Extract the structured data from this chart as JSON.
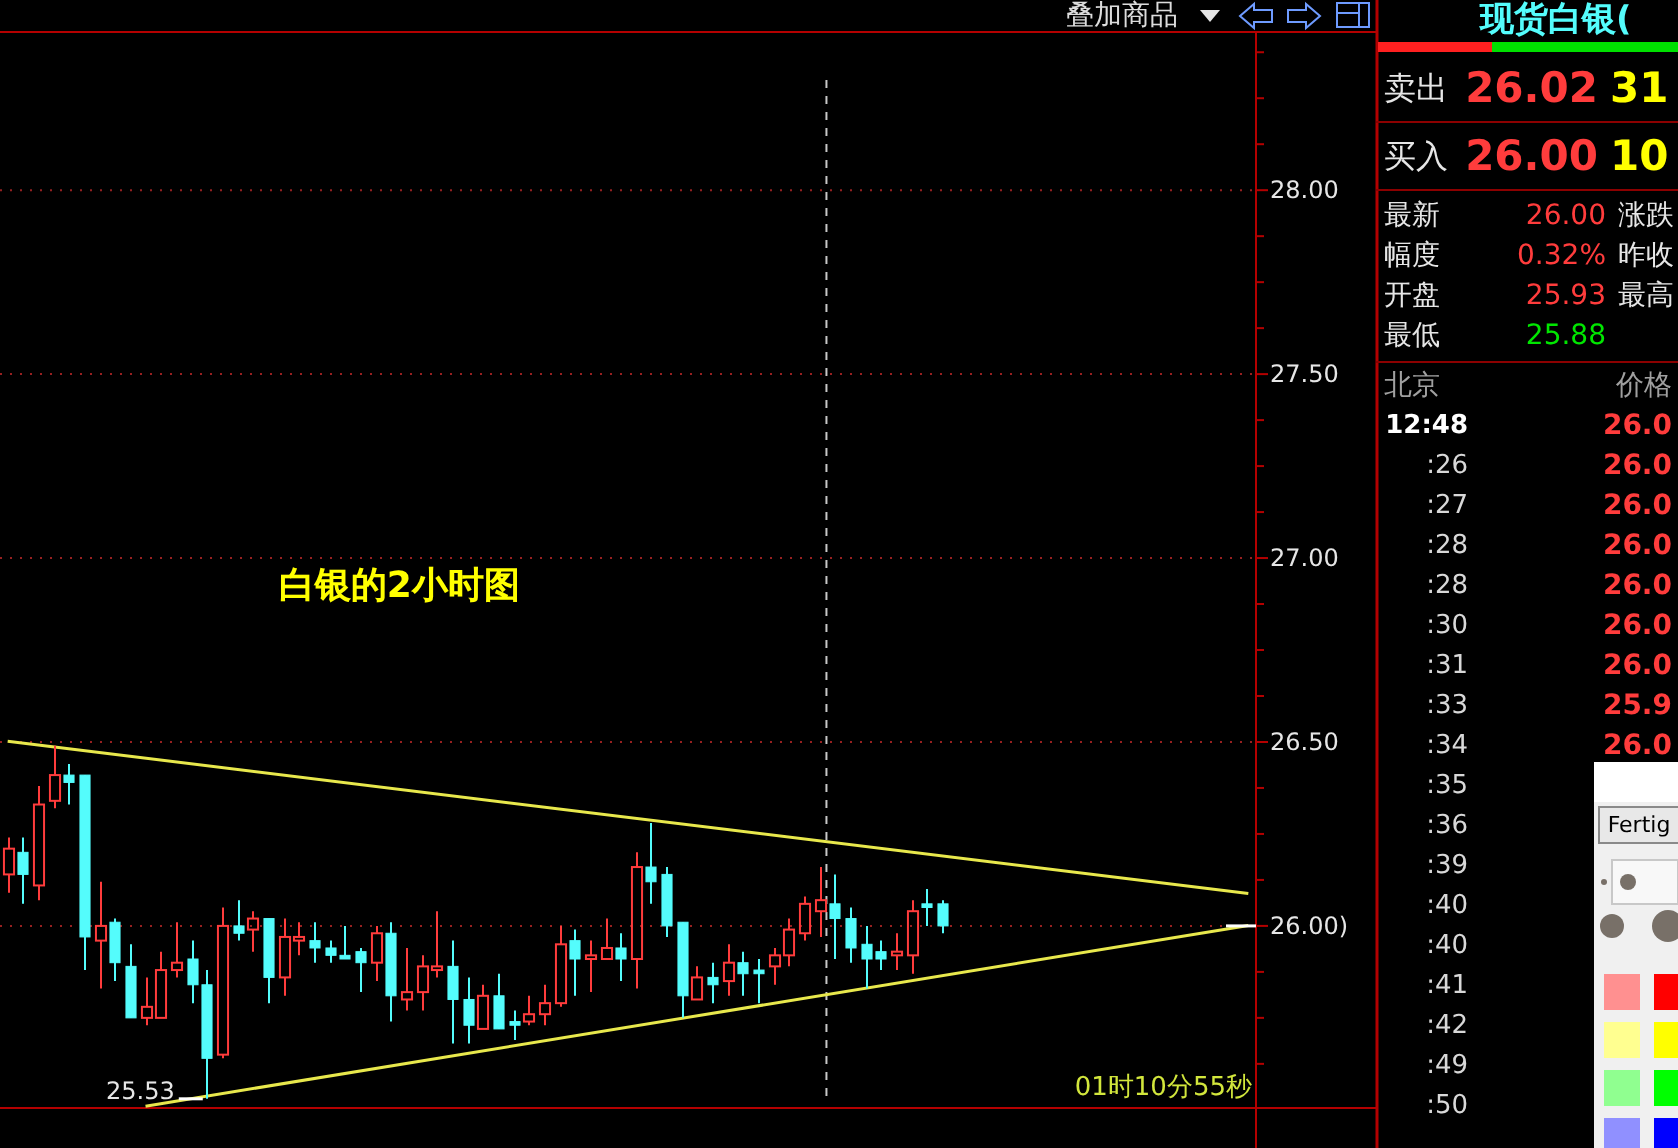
{
  "chart_data": [
    {
      "type": "candlestick",
      "title": "白银的2小时图",
      "categories": [
        null,
        null,
        null,
        null,
        null,
        null,
        null,
        null,
        null,
        null,
        null,
        null,
        null,
        null,
        null,
        null,
        null,
        null,
        null,
        null,
        null,
        null,
        null,
        null,
        null,
        null,
        null,
        null,
        null,
        null,
        null,
        null,
        null,
        null,
        null,
        null,
        null,
        null,
        null,
        null,
        null,
        null,
        null,
        null,
        null,
        null,
        null,
        null,
        null,
        null,
        null,
        null,
        null,
        null,
        null,
        null,
        null,
        null,
        null,
        null,
        null,
        null,
        null,
        null,
        null,
        null,
        null,
        null,
        null,
        null,
        null,
        null,
        null,
        null,
        null,
        null,
        null,
        null,
        null,
        null,
        null,
        null
      ],
      "ohlc": [
        [
          26.14,
          26.24,
          26.09,
          26.21
        ],
        [
          26.2,
          26.24,
          26.06,
          26.14
        ],
        [
          26.11,
          26.38,
          26.07,
          26.33
        ],
        [
          26.34,
          26.49,
          26.32,
          26.41
        ],
        [
          26.41,
          26.44,
          26.33,
          26.39
        ],
        [
          26.41,
          26.41,
          25.88,
          25.97
        ],
        [
          25.96,
          26.12,
          25.83,
          26.0
        ],
        [
          26.01,
          26.02,
          25.85,
          25.9
        ],
        [
          25.89,
          25.95,
          25.75,
          25.75
        ],
        [
          25.75,
          25.86,
          25.73,
          25.78
        ],
        [
          25.75,
          25.93,
          25.75,
          25.88
        ],
        [
          25.88,
          26.01,
          25.86,
          25.9
        ],
        [
          25.91,
          25.96,
          25.79,
          25.84
        ],
        [
          25.84,
          25.88,
          25.53,
          25.64
        ],
        [
          25.65,
          26.05,
          25.64,
          26.0
        ],
        [
          26.0,
          26.07,
          25.96,
          25.98
        ],
        [
          25.99,
          26.04,
          25.93,
          26.02
        ],
        [
          26.02,
          26.02,
          25.79,
          25.86
        ],
        [
          25.86,
          26.02,
          25.81,
          25.97
        ],
        [
          25.96,
          26.01,
          25.92,
          25.97
        ],
        [
          25.96,
          26.01,
          25.9,
          25.94
        ],
        [
          25.94,
          25.96,
          25.9,
          25.92
        ],
        [
          25.92,
          26.0,
          25.91,
          25.91
        ],
        [
          25.93,
          25.94,
          25.82,
          25.9
        ],
        [
          25.9,
          26.0,
          25.85,
          25.98
        ],
        [
          25.98,
          26.01,
          25.74,
          25.81
        ],
        [
          25.8,
          25.94,
          25.77,
          25.82
        ],
        [
          25.82,
          25.92,
          25.77,
          25.89
        ],
        [
          25.88,
          26.04,
          25.86,
          25.89
        ],
        [
          25.89,
          25.96,
          25.68,
          25.8
        ],
        [
          25.8,
          25.86,
          25.68,
          25.73
        ],
        [
          25.72,
          25.84,
          25.72,
          25.81
        ],
        [
          25.81,
          25.87,
          25.72,
          25.72
        ],
        [
          25.74,
          25.77,
          25.69,
          25.73
        ],
        [
          25.74,
          25.81,
          25.73,
          25.76
        ],
        [
          25.76,
          25.84,
          25.73,
          25.79
        ],
        [
          25.79,
          26.0,
          25.78,
          25.95
        ],
        [
          25.96,
          25.99,
          25.81,
          25.91
        ],
        [
          25.91,
          25.96,
          25.82,
          25.92
        ],
        [
          25.91,
          26.02,
          25.91,
          25.94
        ],
        [
          25.94,
          25.98,
          25.85,
          25.91
        ],
        [
          25.91,
          26.2,
          25.83,
          26.16
        ],
        [
          26.16,
          26.28,
          26.06,
          26.12
        ],
        [
          26.14,
          26.16,
          25.97,
          26.0
        ],
        [
          26.01,
          26.01,
          25.75,
          25.81
        ],
        [
          25.8,
          25.89,
          25.8,
          25.86
        ],
        [
          25.86,
          25.9,
          25.79,
          25.84
        ],
        [
          25.85,
          25.95,
          25.81,
          25.9
        ],
        [
          25.9,
          25.93,
          25.81,
          25.87
        ],
        [
          25.88,
          25.91,
          25.79,
          25.87
        ],
        [
          25.89,
          25.94,
          25.84,
          25.92
        ],
        [
          25.92,
          26.02,
          25.89,
          25.99
        ],
        [
          25.98,
          26.08,
          25.96,
          26.06
        ],
        [
          26.04,
          26.16,
          25.97,
          26.07
        ],
        [
          26.06,
          26.14,
          25.91,
          26.02
        ],
        [
          26.02,
          26.05,
          25.9,
          25.94
        ],
        [
          25.95,
          26.0,
          25.83,
          25.91
        ],
        [
          25.93,
          25.96,
          25.88,
          25.91
        ],
        [
          25.92,
          25.98,
          25.88,
          25.93
        ],
        [
          25.92,
          26.07,
          25.87,
          26.04
        ],
        [
          26.06,
          26.1,
          26.0,
          26.05
        ],
        [
          26.06,
          26.07,
          25.98,
          26.0
        ],
        null,
        null,
        null,
        null,
        null,
        null,
        null,
        null,
        null,
        null,
        null,
        null,
        null,
        null,
        null,
        null,
        null,
        null,
        null,
        null
      ],
      "colors": [
        "#ff3c3c",
        "#54fcfc",
        "#ff3c3c",
        "#ff3c3c",
        "#54fcfc",
        "#54fcfc",
        "#ff3c3c",
        "#54fcfc",
        "#54fcfc",
        "#ff3c3c",
        "#ff3c3c",
        "#ff3c3c",
        "#54fcfc",
        "#54fcfc",
        "#ff3c3c",
        "#54fcfc",
        "#ff3c3c",
        "#54fcfc",
        "#ff3c3c",
        "#ff3c3c",
        "#54fcfc",
        "#54fcfc",
        "#54fcfc",
        "#54fcfc",
        "#ff3c3c",
        "#54fcfc",
        "#ff3c3c",
        "#ff3c3c",
        "#ff3c3c",
        "#54fcfc",
        "#54fcfc",
        "#ff3c3c",
        "#54fcfc",
        "#54fcfc",
        "#ff3c3c",
        "#ff3c3c",
        "#ff3c3c",
        "#54fcfc",
        "#ff3c3c",
        "#ff3c3c",
        "#54fcfc",
        "#ff3c3c",
        "#54fcfc",
        "#54fcfc",
        "#54fcfc",
        "#ff3c3c",
        "#54fcfc",
        "#ff3c3c",
        "#54fcfc",
        "#54fcfc",
        "#ff3c3c",
        "#ff3c3c",
        "#ff3c3c",
        "#ff3c3c",
        "#54fcfc",
        "#54fcfc",
        "#54fcfc",
        "#54fcfc",
        "#ff3c3c",
        "#ff3c3c",
        "#54fcfc",
        "#54fcfc",
        null,
        null,
        null,
        null,
        null,
        null,
        null,
        null,
        null,
        null,
        null,
        null,
        null,
        null,
        null,
        null,
        null,
        null,
        null,
        null
      ],
      "series": [
        {
          "type": "line",
          "values": [
            26.502,
            null,
            null,
            null,
            null,
            null,
            null,
            null,
            null,
            null,
            null,
            null,
            null,
            null,
            null,
            null,
            null,
            null,
            null,
            null,
            null,
            null,
            null,
            null,
            null,
            null,
            null,
            null,
            null,
            null,
            null,
            null,
            null,
            null,
            null,
            null,
            null,
            null,
            null,
            null,
            null,
            null,
            null,
            null,
            null,
            null,
            null,
            null,
            null,
            null,
            null,
            null,
            null,
            null,
            null,
            null,
            null,
            null,
            null,
            null,
            null,
            null,
            null,
            null,
            null,
            null,
            null,
            null,
            null,
            null,
            null,
            null,
            null,
            null,
            null,
            null,
            null,
            null,
            null,
            null,
            null,
            26.088
          ],
          "color": "#e8e84c"
        },
        {
          "type": "line",
          "values": [
            null,
            null,
            null,
            null,
            null,
            null,
            null,
            null,
            null,
            25.51,
            null,
            null,
            null,
            null,
            null,
            null,
            null,
            null,
            null,
            null,
            null,
            null,
            null,
            null,
            null,
            null,
            null,
            null,
            null,
            null,
            null,
            null,
            null,
            null,
            null,
            null,
            null,
            null,
            null,
            null,
            null,
            null,
            null,
            null,
            null,
            null,
            null,
            null,
            null,
            null,
            null,
            null,
            null,
            null,
            null,
            null,
            null,
            null,
            null,
            null,
            null,
            null,
            null,
            null,
            null,
            null,
            null,
            null,
            null,
            null,
            null,
            null,
            null,
            null,
            null,
            null,
            null,
            null,
            null,
            null,
            null,
            26.001
          ],
          "color": "#e8e84c"
        }
      ],
      "ylim": [
        25.505,
        28.43
      ],
      "yticks": [
        {
          "value": 25.625,
          "label": null
        },
        {
          "value": 25.75,
          "label": null
        },
        {
          "value": 25.875,
          "label": null
        },
        {
          "value": 26,
          "label": "26.00)"
        },
        {
          "value": 26.125,
          "label": null
        },
        {
          "value": 26.25,
          "label": null
        },
        {
          "value": 26.375,
          "label": null
        },
        {
          "value": 26.5,
          "label": "26.50"
        },
        {
          "value": 26.625,
          "label": null
        },
        {
          "value": 26.75,
          "label": null
        },
        {
          "value": 26.875,
          "label": null
        },
        {
          "value": 27,
          "label": "27.00"
        },
        {
          "value": 27.125,
          "label": null
        },
        {
          "value": 27.25,
          "label": null
        },
        {
          "value": 27.375,
          "label": null
        },
        {
          "value": 27.5,
          "label": "27.50"
        },
        {
          "value": 27.625,
          "label": null
        },
        {
          "value": 27.75,
          "label": null
        },
        {
          "value": 27.875,
          "label": null
        },
        {
          "value": 28,
          "label": "28.00"
        },
        {
          "value": 28.125,
          "label": null
        },
        {
          "value": 28.25,
          "label": null
        },
        {
          "value": 28.375,
          "label": null
        }
      ],
      "grid": "y",
      "tick_labels": "y",
      "annotations": [
        "25.53",
        "01时10分55秒",
        "叠加商品"
      ]
    },
    {
      "type": "other",
      "title": "现货白银(",
      "annotations": [
        "卖出",
        "26.02",
        "31",
        "买入",
        "26.00",
        "10",
        "最新",
        "26.00",
        "涨跌",
        "幅度",
        "0.32%",
        "昨收",
        "开盘",
        "25.93",
        "最高",
        "最低",
        "25.88",
        "Fertig",
        "北京",
        "价格",
        "12:48",
        ":26",
        ":27",
        ":28",
        ":28",
        ":30",
        ":31",
        ":33",
        ":34",
        ":35",
        ":36",
        ":39",
        ":40",
        ":40",
        ":41",
        ":42",
        ":49",
        ":50",
        "26.0",
        "26.0",
        "26.0",
        "26.0",
        "26.0",
        "26.0",
        "26.0",
        "25.9",
        "26.0"
      ]
    }
  ]
}
